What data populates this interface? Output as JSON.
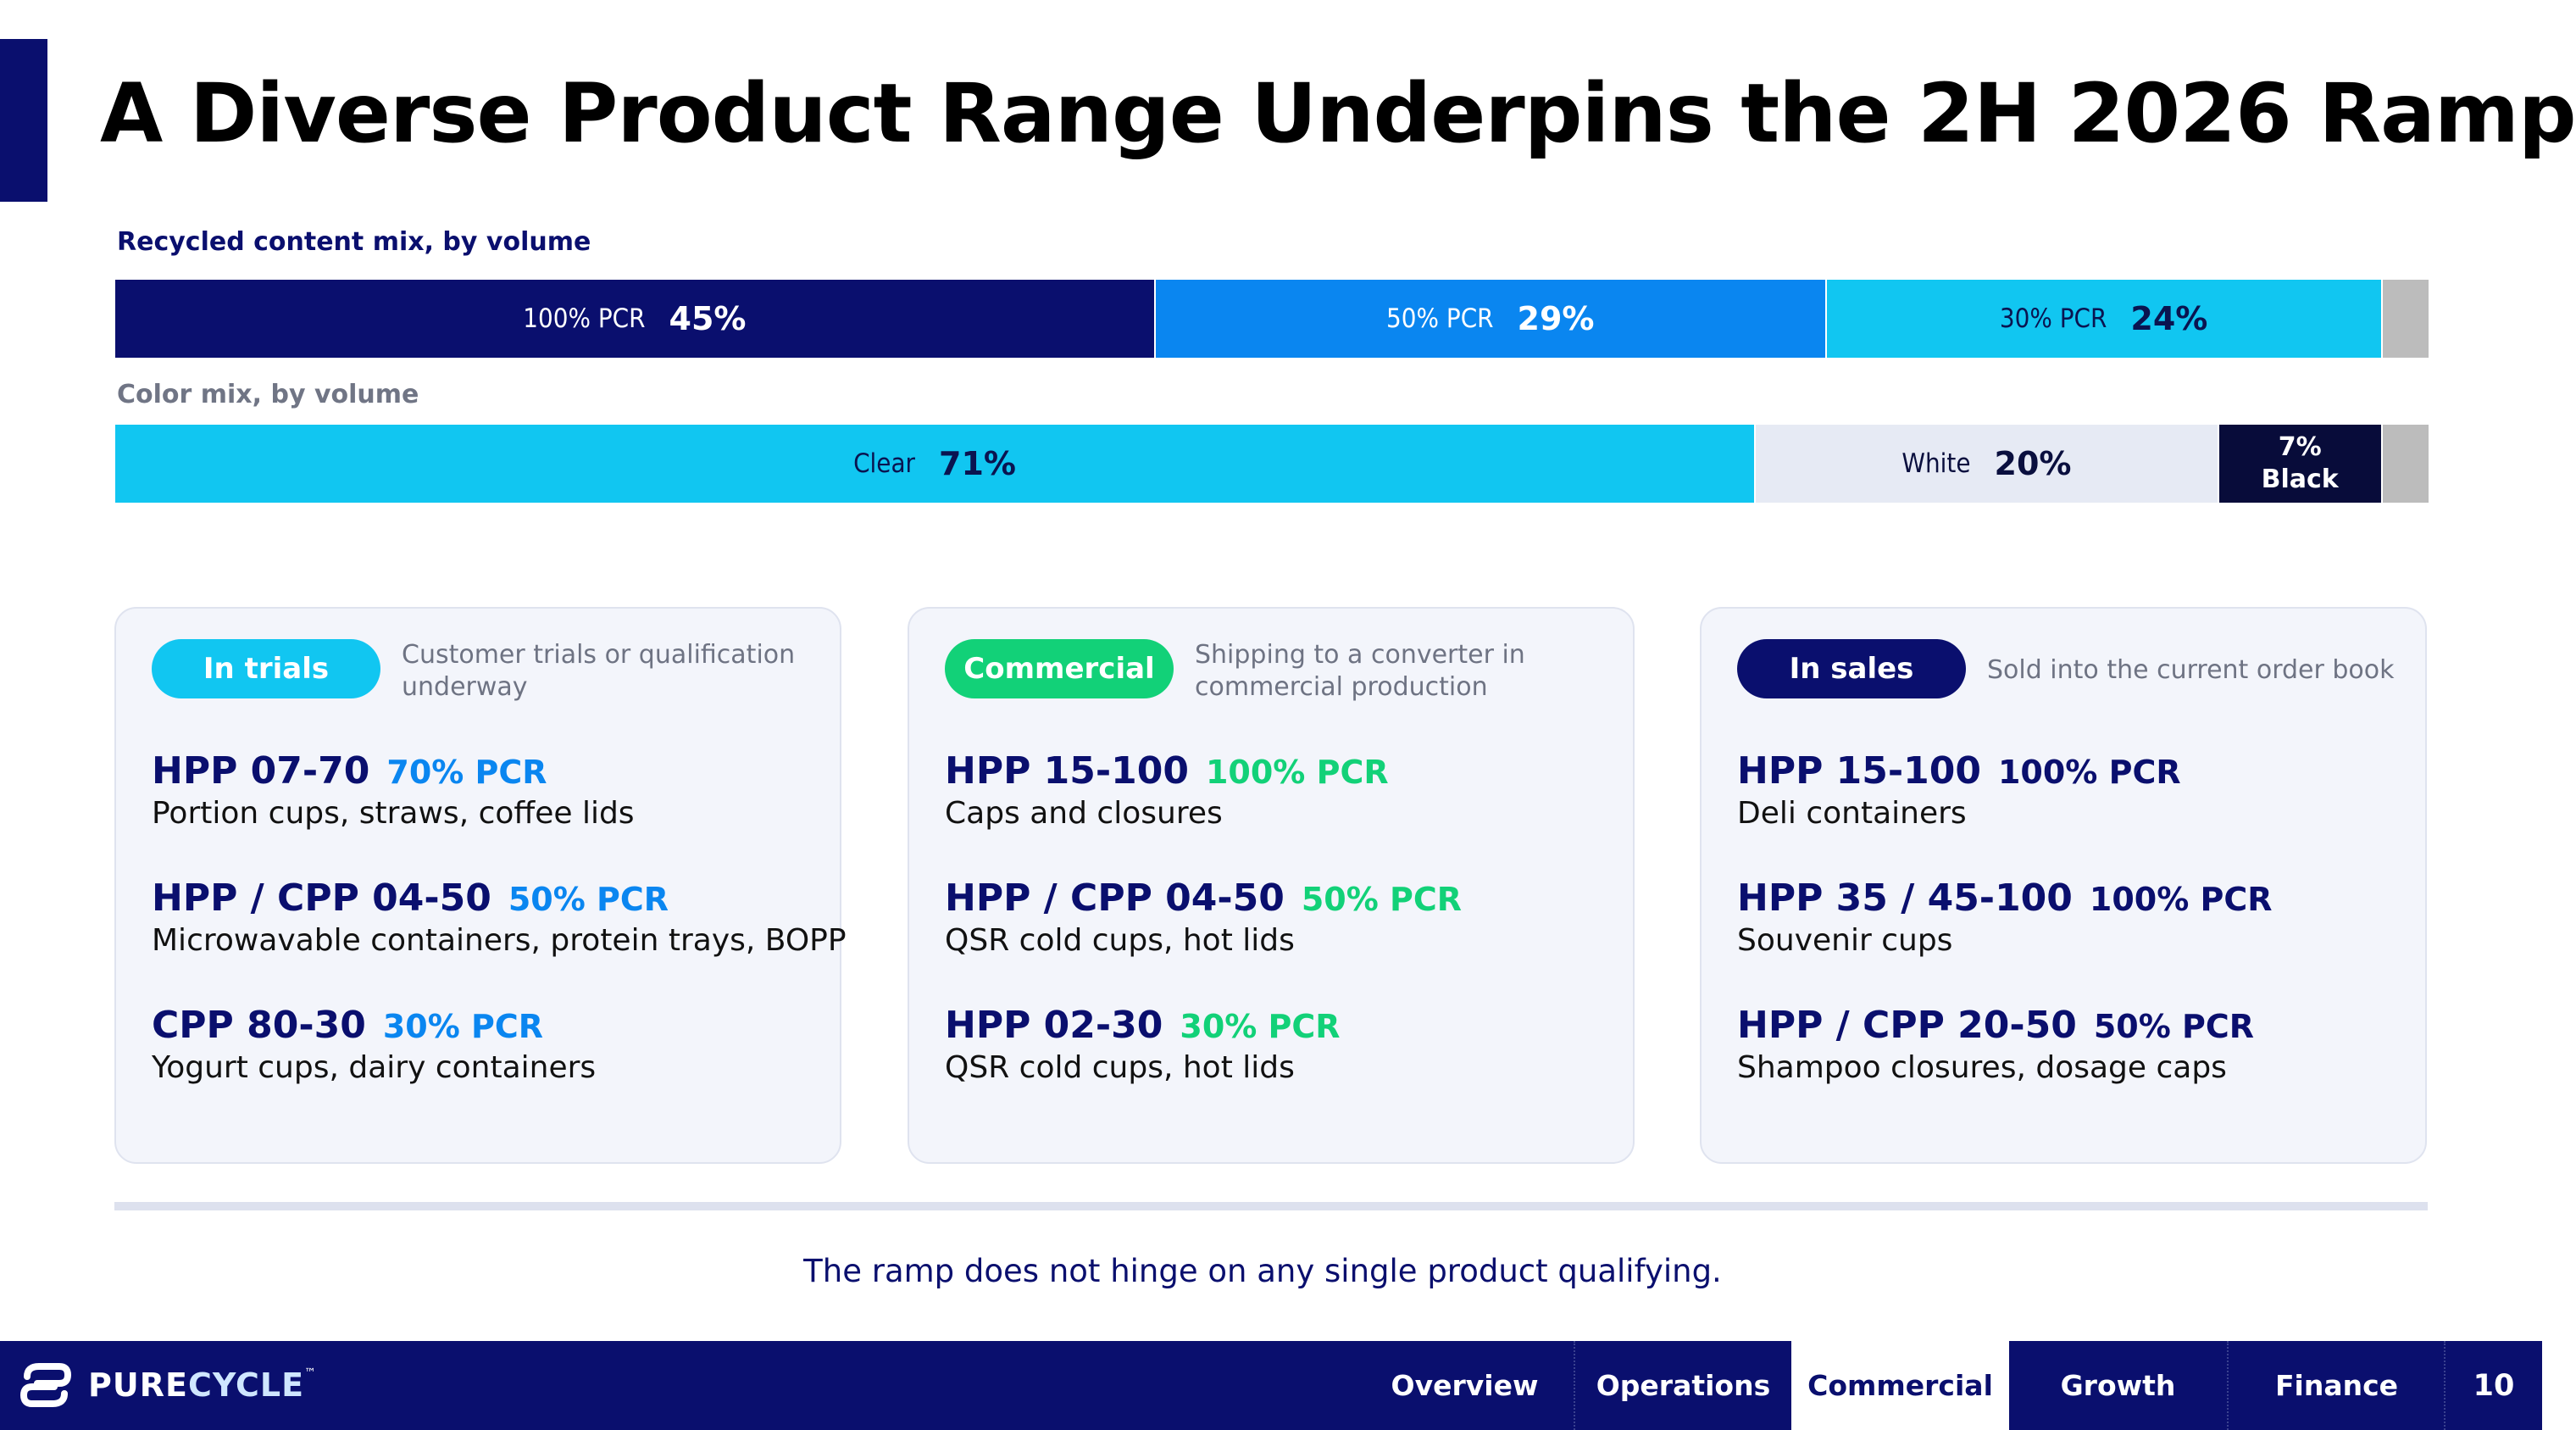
{
  "title": "A Diverse Product Range Underpins the 2H 2026 Ramp",
  "recycled_mix": {
    "label": "Recycled content mix, by volume",
    "segments": [
      {
        "label": "100% PCR",
        "pct": "45%",
        "share": 45,
        "color": "#0a0f6e",
        "text_color": "#ffffff"
      },
      {
        "label": "50% PCR",
        "pct": "29%",
        "share": 29,
        "color": "#0a86f0",
        "text_color": "#ffffff"
      },
      {
        "label": "30% PCR",
        "pct": "24%",
        "share": 24,
        "color": "#11c6f1",
        "text_color": "#0a1450"
      },
      {
        "label": "",
        "pct": "",
        "share": 2,
        "color": "#bcbcbc",
        "text_color": "#ffffff"
      }
    ]
  },
  "color_mix": {
    "label": "Color mix, by volume",
    "segments": [
      {
        "label": "Clear",
        "pct": "71%",
        "share": 71,
        "color": "#11c6f1",
        "text_color": "#0a1450"
      },
      {
        "label": "White",
        "pct": "20%",
        "share": 20,
        "color": "#e6eaf4",
        "text_color": "#0a0f3e"
      },
      {
        "label": "Black",
        "pct": "7%",
        "share": 7,
        "color": "#080c3a",
        "text_color": "#ffffff"
      },
      {
        "label": "",
        "pct": "",
        "share": 2,
        "color": "#bcbcbc",
        "text_color": "#ffffff"
      }
    ]
  },
  "cards": [
    {
      "badge": "In trials",
      "badge_color": "#11c6f1",
      "badge_text_color": "#ffffff",
      "description": "Customer trials or qualification underway",
      "pcr_color": "#0a86f0",
      "products": [
        {
          "name": "HPP 07-70",
          "pcr": "70% PCR",
          "use": "Portion cups, straws, coffee lids"
        },
        {
          "name": "HPP / CPP 04-50",
          "pcr": "50% PCR",
          "use": "Microwavable containers, protein trays, BOPP"
        },
        {
          "name": "CPP 80-30",
          "pcr": "30% PCR",
          "use": "Yogurt cups, dairy containers"
        }
      ]
    },
    {
      "badge": "Commercial",
      "badge_color": "#12d178",
      "badge_text_color": "#ffffff",
      "description": "Shipping to a converter in commercial production",
      "pcr_color": "#12d178",
      "products": [
        {
          "name": "HPP 15-100",
          "pcr": "100% PCR",
          "use": "Caps and closures"
        },
        {
          "name": "HPP / CPP 04-50",
          "pcr": "50% PCR",
          "use": "QSR cold cups, hot lids"
        },
        {
          "name": "HPP 02-30",
          "pcr": "30% PCR",
          "use": "QSR cold cups, hot lids"
        }
      ]
    },
    {
      "badge": "In sales",
      "badge_color": "#0a0f6e",
      "badge_text_color": "#ffffff",
      "description": "Sold into the current order book",
      "pcr_color": "#0a0f6e",
      "products": [
        {
          "name": "HPP 15-100",
          "pcr": "100% PCR",
          "use": "Deli containers"
        },
        {
          "name": "HPP 35 / 45-100",
          "pcr": "100% PCR",
          "use": "Souvenir cups"
        },
        {
          "name": "HPP / CPP 20-50",
          "pcr": "50% PCR",
          "use": "Shampoo closures, dosage caps"
        }
      ]
    }
  ],
  "footnote": "The ramp does not hinge on any single product qualifying.",
  "footer": {
    "logo_pure": "PURE",
    "logo_cycle": "CYCLE",
    "logo_tm": "™",
    "nav": [
      {
        "label": "Overview",
        "active": false
      },
      {
        "label": "Operations",
        "active": false
      },
      {
        "label": "Commercial",
        "active": true
      },
      {
        "label": "Growth",
        "active": false
      },
      {
        "label": "Finance",
        "active": false
      }
    ],
    "page_number": "10"
  }
}
